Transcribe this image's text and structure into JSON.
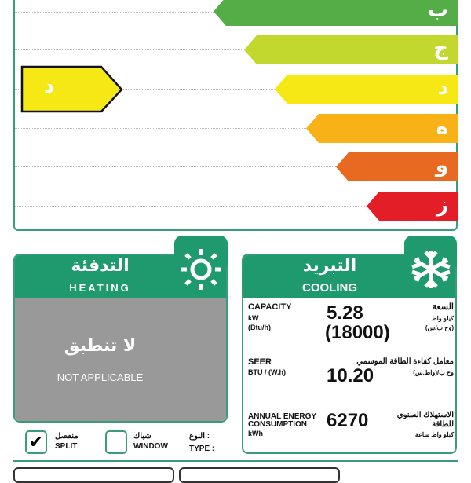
{
  "scale": {
    "classes": [
      {
        "label": "ب",
        "color": "#55ad47"
      },
      {
        "label": "ج",
        "color": "#c2d82e"
      },
      {
        "label": "د",
        "color": "#f5e814"
      },
      {
        "label": "ه",
        "color": "#f8b116"
      },
      {
        "label": "و",
        "color": "#e86a20"
      },
      {
        "label": "ز",
        "color": "#e31e26"
      }
    ],
    "rating": {
      "label": "د",
      "color": "#f5e814"
    }
  },
  "heating": {
    "title_ar": "التدفئة",
    "title_en": "HEATING",
    "na_ar": "لا تنطبق",
    "na_en": "NOT APPLICABLE",
    "icon": "sun-icon"
  },
  "cooling": {
    "title_ar": "التبريد",
    "title_en": "COOLING",
    "icon": "snowflake-icon",
    "capacity": {
      "en": "CAPACITY",
      "unit1": "kW",
      "unit2": "(Btu/h)",
      "value_kw": "5.28",
      "value_btu": "(18000)",
      "ar": "السعة",
      "ar_unit1": "كيلو واط",
      "ar_unit2": "(وح ب/س)"
    },
    "seer": {
      "en": "SEER",
      "unit": "BTU / (W.h)",
      "value": "10.20",
      "ar": "معامل كفاءة الطاقة الموسمي",
      "ar_unit": "وح ب/(واط.س)"
    },
    "annual": {
      "en1": "ANNUAL ENERGY",
      "en2": "CONSUMPTION",
      "unit": "kWh",
      "value": "6270",
      "ar1": "الاستهلاك السنوي",
      "ar2": "للطاقة",
      "ar_unit": "كيلو واط ساعة"
    }
  },
  "type": {
    "label_ar": "النوع :",
    "label_en": "TYPE :",
    "split_ar": "منفصل",
    "split_en": "SPLIT",
    "split_checked": true,
    "window_ar": "شباك",
    "window_en": "WINDOW",
    "window_checked": false,
    "check": "✔"
  }
}
